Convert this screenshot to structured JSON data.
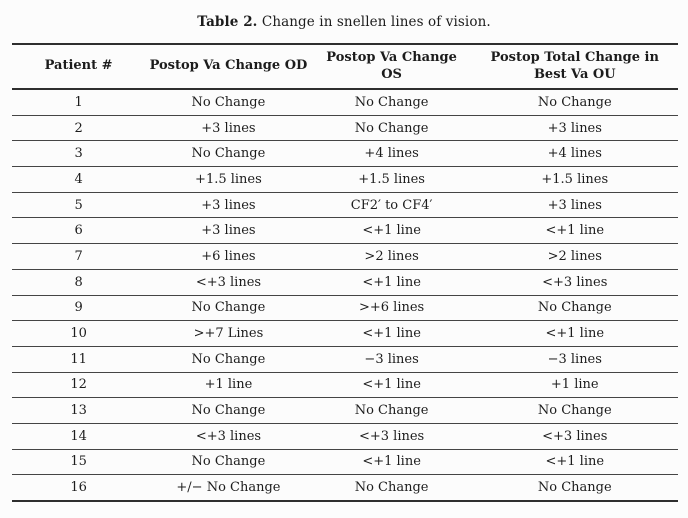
{
  "caption": {
    "label": "Table 2.",
    "text": " Change in snellen lines of vision."
  },
  "table": {
    "columns": [
      "Patient #",
      "Postop Va Change OD",
      "Postop Va Change OS",
      "Postop Total Change in Best Va OU"
    ],
    "rows": [
      [
        "1",
        "No Change",
        "No Change",
        "No Change"
      ],
      [
        "2",
        "+3 lines",
        "No Change",
        "+3 lines"
      ],
      [
        "3",
        "No Change",
        "+4 lines",
        "+4 lines"
      ],
      [
        "4",
        "+1.5 lines",
        "+1.5 lines",
        "+1.5 lines"
      ],
      [
        "5",
        "+3 lines",
        "CF2′ to CF4′",
        "+3 lines"
      ],
      [
        "6",
        "+3 lines",
        "<+1 line",
        "<+1 line"
      ],
      [
        "7",
        "+6 lines",
        ">2 lines",
        ">2 lines"
      ],
      [
        "8",
        "<+3 lines",
        "<+1 line",
        "<+3 lines"
      ],
      [
        "9",
        "No Change",
        ">+6 lines",
        "No Change"
      ],
      [
        "10",
        ">+7 Lines",
        "<+1 line",
        "<+1 line"
      ],
      [
        "11",
        "No Change",
        "−3 lines",
        "−3 lines"
      ],
      [
        "12",
        "+1 line",
        "<+1 line",
        "+1 line"
      ],
      [
        "13",
        "No Change",
        "No Change",
        "No Change"
      ],
      [
        "14",
        "<+3 lines",
        "<+3 lines",
        "<+3 lines"
      ],
      [
        "15",
        "No Change",
        "<+1 line",
        "<+1 line"
      ],
      [
        "16",
        "+/− No Change",
        "No Change",
        "No Change"
      ]
    ]
  },
  "colors": {
    "background": "#fcfcfc",
    "text": "#1c1c1c",
    "rule_heavy": "#2e2e2e",
    "rule_light": "#454545"
  }
}
